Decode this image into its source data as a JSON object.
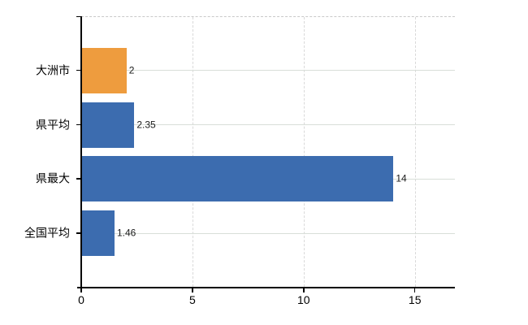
{
  "chart_data": {
    "type": "bar",
    "orientation": "horizontal",
    "categories": [
      "大洲市",
      "県平均",
      "県最大",
      "全国平均"
    ],
    "values": [
      2,
      2.35,
      14,
      1.46
    ],
    "value_labels": [
      "2",
      "2.35",
      "14",
      "1.46"
    ],
    "bar_colors": [
      "#EE9C3E",
      "#3C6CAF",
      "#3C6CAF",
      "#3C6CAF"
    ],
    "x_ticks": [
      0,
      5,
      10,
      15
    ],
    "x_tick_labels": [
      "0",
      "5",
      "10",
      "15"
    ],
    "xlim": [
      0,
      16.8
    ],
    "legend": false,
    "grid": {
      "vertical_style": "dashed",
      "horizontal_style": "solid"
    },
    "colors": {
      "axis": "#000000",
      "category_gridline": "#d8ded8",
      "value_gridline": "#d9d9d9",
      "plot_top_border": "#c9c9c9",
      "category_text": "#000000",
      "value_text": "#1a1a1a",
      "background": "#ffffff"
    }
  }
}
